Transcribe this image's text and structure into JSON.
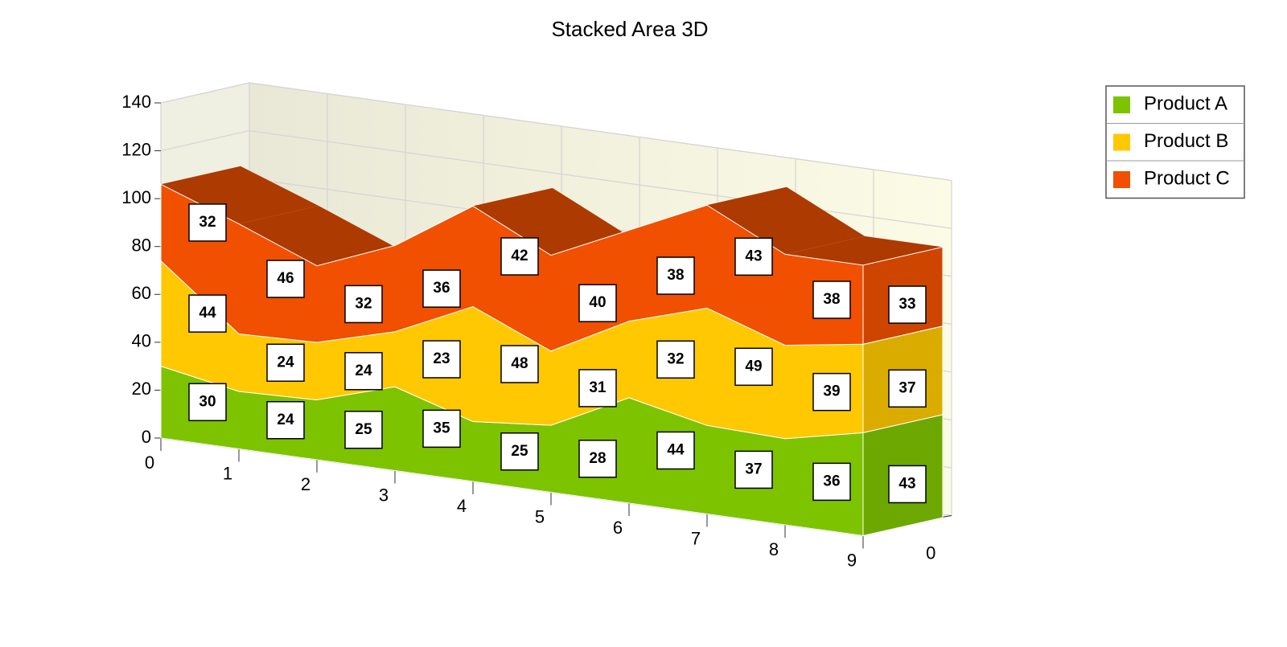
{
  "chart_data": {
    "type": "area3d",
    "title": "Stacked Area 3D",
    "categories": [
      "0",
      "1",
      "2",
      "3",
      "4",
      "5",
      "6",
      "7",
      "8",
      "9"
    ],
    "series": [
      {
        "name": "Product A",
        "color": "#7dc300",
        "values": [
          30,
          24,
          25,
          35,
          25,
          28,
          44,
          37,
          36,
          43
        ]
      },
      {
        "name": "Product B",
        "color": "#ffc800",
        "values": [
          44,
          24,
          24,
          23,
          48,
          31,
          32,
          49,
          39,
          37
        ]
      },
      {
        "name": "Product C",
        "color": "#f05000",
        "values": [
          32,
          46,
          32,
          36,
          42,
          40,
          38,
          43,
          38,
          33
        ]
      }
    ],
    "stacked": true,
    "ylim": [
      0,
      140
    ],
    "yticks": [
      0,
      20,
      40,
      60,
      80,
      100,
      120,
      140
    ],
    "zticks": [
      0
    ],
    "grid": true,
    "legend": "top-right"
  }
}
